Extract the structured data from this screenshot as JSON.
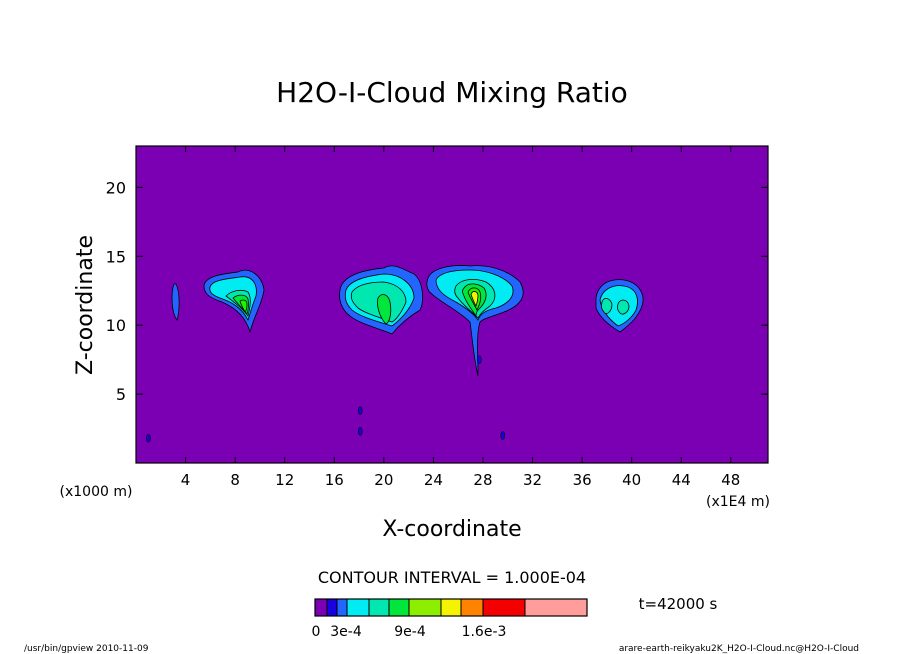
{
  "chart_data": {
    "type": "heatmap",
    "title": "H2O-I-Cloud Mixing Ratio",
    "xlabel": "X-coordinate",
    "ylabel": "Z-coordinate",
    "x_unit_note": "(x1E4 m)",
    "y_unit_note": "(x1000 m)",
    "xlim": [
      0,
      51
    ],
    "ylim": [
      0,
      23
    ],
    "xticks": [
      "4",
      "8",
      "12",
      "16",
      "20",
      "24",
      "28",
      "32",
      "36",
      "40",
      "44",
      "48"
    ],
    "xtick_values": [
      4,
      8,
      12,
      16,
      20,
      24,
      28,
      32,
      36,
      40,
      44,
      48
    ],
    "yticks": [
      "5",
      "10",
      "15",
      "20"
    ],
    "ytick_values": [
      5,
      10,
      15,
      20
    ],
    "contour_interval": "CONTOUR INTERVAL = 1.000E-04",
    "time": "t=42000 s",
    "background_color": "#7b00b4",
    "colorbar": {
      "colors": [
        "#7b00b4",
        "#1a00e0",
        "#2366ff",
        "#00ecf2",
        "#00e8b0",
        "#00e63c",
        "#22f200",
        "#8eee00",
        "#f4f400",
        "#ff8200",
        "#f50000",
        "#ff9c9c"
      ],
      "labels": [
        "0",
        "3e-4",
        "9e-4",
        "1.6e-3"
      ]
    },
    "clouds": [
      {
        "x": 3.2,
        "z": 11.8,
        "max_level": 2
      },
      {
        "x": 8.0,
        "z": 12.2,
        "max_level": 6
      },
      {
        "x": 19.8,
        "z": 12.2,
        "max_level": 5
      },
      {
        "x": 27.5,
        "z": 12.4,
        "max_level": 8
      },
      {
        "x": 39.0,
        "z": 11.6,
        "max_level": 4
      }
    ]
  },
  "footer": {
    "left": "/usr/bin/gpview   2010-11-09",
    "right": "arare-earth-reikyaku2K_H2O-I-Cloud.nc@H2O-I-Cloud"
  }
}
